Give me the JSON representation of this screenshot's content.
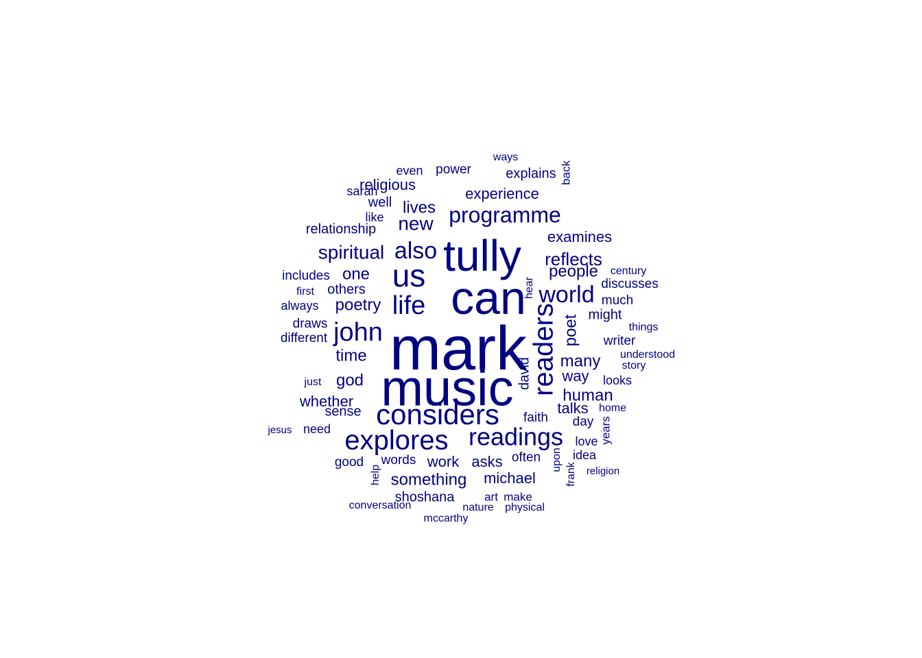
{
  "style": {
    "word_color": "#000080",
    "background": "#ffffff"
  },
  "words": [
    {
      "text": "mark",
      "weight": 100
    },
    {
      "text": "music",
      "weight": 78
    },
    {
      "text": "can",
      "weight": 70
    },
    {
      "text": "tully",
      "weight": 68
    },
    {
      "text": "us",
      "weight": 48
    },
    {
      "text": "considers",
      "weight": 46
    },
    {
      "text": "readers",
      "weight": 45
    },
    {
      "text": "explores",
      "weight": 44
    },
    {
      "text": "life",
      "weight": 42
    },
    {
      "text": "john",
      "weight": 40
    },
    {
      "text": "readings",
      "weight": 38
    },
    {
      "text": "programme",
      "weight": 36
    },
    {
      "text": "world",
      "weight": 34
    },
    {
      "text": "also",
      "weight": 34
    },
    {
      "text": "spiritual",
      "weight": 30
    },
    {
      "text": "new",
      "weight": 30
    },
    {
      "text": "reflects",
      "weight": 28
    },
    {
      "text": "poet",
      "weight": 28
    },
    {
      "text": "people",
      "weight": 27
    },
    {
      "text": "many",
      "weight": 27
    },
    {
      "text": "time",
      "weight": 26
    },
    {
      "text": "god",
      "weight": 26
    },
    {
      "text": "poetry",
      "weight": 25
    },
    {
      "text": "human",
      "weight": 25
    },
    {
      "text": "one",
      "weight": 25
    },
    {
      "text": "lives",
      "weight": 24
    },
    {
      "text": "something",
      "weight": 24
    },
    {
      "text": "examines",
      "weight": 23
    },
    {
      "text": "way",
      "weight": 23
    },
    {
      "text": "whether",
      "weight": 22
    },
    {
      "text": "religious",
      "weight": 22
    },
    {
      "text": "talks",
      "weight": 22
    },
    {
      "text": "asks",
      "weight": 22
    },
    {
      "text": "work",
      "weight": 22
    },
    {
      "text": "experience",
      "weight": 21
    },
    {
      "text": "michael",
      "weight": 21
    },
    {
      "text": "explains",
      "weight": 21
    },
    {
      "text": "shoshana",
      "weight": 20
    },
    {
      "text": "david",
      "weight": 20
    },
    {
      "text": "relationship",
      "weight": 20
    },
    {
      "text": "others",
      "weight": 20
    },
    {
      "text": "well",
      "weight": 20
    },
    {
      "text": "sense",
      "weight": 20
    },
    {
      "text": "might",
      "weight": 20
    },
    {
      "text": "words",
      "weight": 19
    },
    {
      "text": "often",
      "weight": 19
    },
    {
      "text": "faith",
      "weight": 19
    },
    {
      "text": "day",
      "weight": 19
    },
    {
      "text": "good",
      "weight": 19
    },
    {
      "text": "draws",
      "weight": 18
    },
    {
      "text": "includes",
      "weight": 18
    },
    {
      "text": "power",
      "weight": 18
    },
    {
      "text": "different",
      "weight": 18
    },
    {
      "text": "writer",
      "weight": 18
    },
    {
      "text": "discusses",
      "weight": 18
    },
    {
      "text": "much",
      "weight": 18
    },
    {
      "text": "looks",
      "weight": 17
    },
    {
      "text": "need",
      "weight": 17
    },
    {
      "text": "always",
      "weight": 17
    },
    {
      "text": "idea",
      "weight": 17
    },
    {
      "text": "sarah",
      "weight": 17
    },
    {
      "text": "even",
      "weight": 17
    },
    {
      "text": "like",
      "weight": 17
    },
    {
      "text": "love",
      "weight": 17
    },
    {
      "text": "hear",
      "weight": 17
    },
    {
      "text": "help",
      "weight": 17
    },
    {
      "text": "upon",
      "weight": 17
    },
    {
      "text": "frank",
      "weight": 17
    },
    {
      "text": "art",
      "weight": 17
    },
    {
      "text": "make",
      "weight": 17
    },
    {
      "text": "years",
      "weight": 17
    },
    {
      "text": "back",
      "weight": 17
    },
    {
      "text": "century",
      "weight": 16
    },
    {
      "text": "home",
      "weight": 16
    },
    {
      "text": "ways",
      "weight": 16
    },
    {
      "text": "story",
      "weight": 16
    },
    {
      "text": "understood",
      "weight": 16
    },
    {
      "text": "things",
      "weight": 16
    },
    {
      "text": "first",
      "weight": 16
    },
    {
      "text": "just",
      "weight": 16
    },
    {
      "text": "mccarthy",
      "weight": 16
    },
    {
      "text": "nature",
      "weight": 16
    },
    {
      "text": "conversation",
      "weight": 16
    },
    {
      "text": "physical",
      "weight": 16
    },
    {
      "text": "religion",
      "weight": 15
    },
    {
      "text": "jesus",
      "weight": 15
    }
  ]
}
